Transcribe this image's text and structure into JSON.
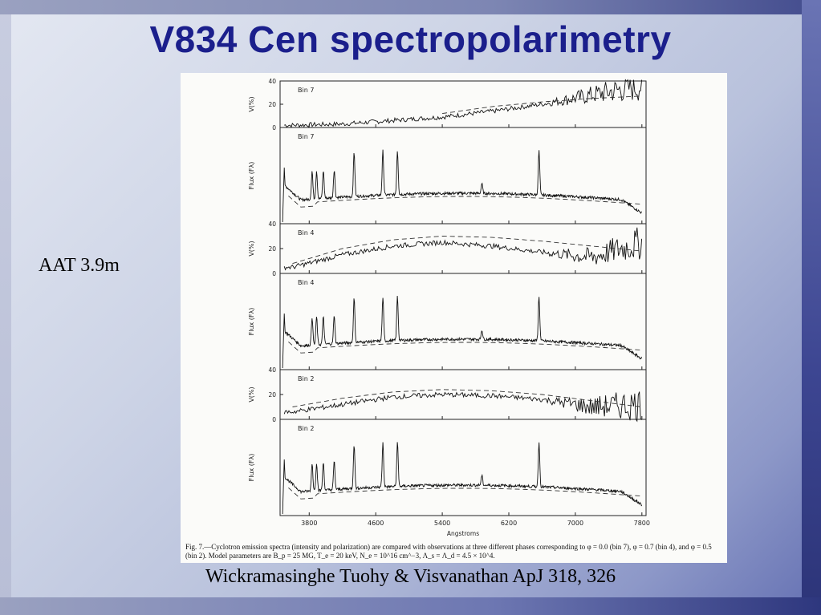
{
  "slide": {
    "title": "V834 Cen spectropolarimetry",
    "side_label": "AAT 3.9m",
    "citation": "Wickramasinghe Tuohy & Visvanathan ApJ 318, 326"
  },
  "figure": {
    "caption": "Fig. 7.—Cyclotron emission spectra (intensity and polarization) are compared with observations at three different phases corresponding to φ = 0.0 (bin 7), φ = 0.7 (bin 4), and φ = 0.5 (bin 2). Model parameters are B_p = 25 MG, T_e = 20 keV, N_e = 10^16 cm^−3, Λ_s = Λ_d = 4.5 × 10^4."
  },
  "chart_data": {
    "type": "line",
    "xlabel": "Angstroms",
    "xlim": [
      3450,
      7850
    ],
    "xticks": [
      3800,
      4600,
      5400,
      6200,
      7000,
      7800
    ],
    "grid": false,
    "panels": [
      {
        "bin": "Bin 7",
        "quantity": "polarization",
        "ylabel": "V(%)",
        "ylim": [
          0,
          40
        ],
        "yticks": [
          0,
          20,
          40
        ],
        "observed_trend_x": [
          3600,
          4200,
          4800,
          5400,
          6000,
          6600,
          7200,
          7800
        ],
        "observed_trend_y": [
          2,
          3,
          6,
          9,
          14,
          20,
          28,
          36
        ],
        "model_x": [
          5400,
          6000,
          6600,
          7200,
          7800
        ],
        "model_y": [
          12,
          18,
          22,
          25,
          27
        ]
      },
      {
        "bin": "Bin 7",
        "quantity": "flux",
        "ylabel": "Flux (Fλ)"
      },
      {
        "bin": "Bin 4",
        "quantity": "polarization",
        "ylabel": "V(%)",
        "ylim": [
          0,
          40
        ],
        "yticks": [
          0,
          20,
          40
        ],
        "observed_trend_x": [
          3600,
          4200,
          4800,
          5400,
          6000,
          6600,
          7200,
          7800
        ],
        "observed_trend_y": [
          5,
          15,
          22,
          25,
          22,
          17,
          13,
          25
        ],
        "model_x": [
          3600,
          4200,
          4800,
          5400,
          6000,
          6600,
          7200,
          7800
        ],
        "model_y": [
          8,
          20,
          27,
          30,
          29,
          26,
          22,
          18
        ]
      },
      {
        "bin": "Bin 4",
        "quantity": "flux",
        "ylabel": "Flux (Fλ)"
      },
      {
        "bin": "Bin 2",
        "quantity": "polarization",
        "ylabel": "V(%)",
        "ylim": [
          0,
          40
        ],
        "yticks": [
          0,
          20,
          40
        ],
        "observed_trend_x": [
          3600,
          4200,
          4800,
          5400,
          6000,
          6600,
          7200,
          7800
        ],
        "observed_trend_y": [
          6,
          12,
          18,
          20,
          19,
          16,
          10,
          12
        ],
        "model_x": [
          3600,
          4200,
          4800,
          5400,
          6000,
          6600,
          7200,
          7800
        ],
        "model_y": [
          10,
          17,
          22,
          24,
          23,
          20,
          15,
          10
        ]
      },
      {
        "bin": "Bin 2",
        "quantity": "flux",
        "ylabel": "Flux (Fλ)"
      }
    ],
    "emission_lines_x": [
      3835,
      3889,
      3970,
      4101,
      4340,
      4686,
      4861,
      5876,
      6563
    ]
  }
}
